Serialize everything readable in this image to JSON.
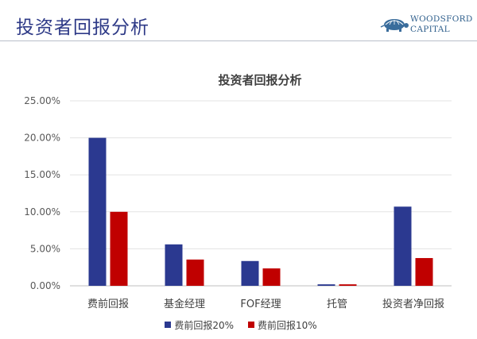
{
  "slide": {
    "title": "投资者回报分析"
  },
  "logo": {
    "line1": "WOODSFORD",
    "line2": "CAPITAL",
    "icon": "turtle-logo-icon"
  },
  "chart_data": {
    "type": "bar",
    "title": "投资者回报分析",
    "categories": [
      "费前回报",
      "基金经理",
      "FOF经理",
      "托管",
      "投资者净回报"
    ],
    "series": [
      {
        "name": "费前回报20%",
        "color": "#2b3990",
        "values": [
          20.0,
          5.6,
          3.35,
          0.2,
          10.7
        ]
      },
      {
        "name": "费前回报10%",
        "color": "#c00000",
        "values": [
          10.0,
          3.55,
          2.35,
          0.2,
          3.75
        ]
      }
    ],
    "ylim": [
      0,
      25
    ],
    "yticks": [
      "0.00%",
      "5.00%",
      "10.00%",
      "15.00%",
      "20.00%",
      "25.00%"
    ],
    "grid": true,
    "legend_position": "bottom",
    "xlabel": "",
    "ylabel": ""
  }
}
